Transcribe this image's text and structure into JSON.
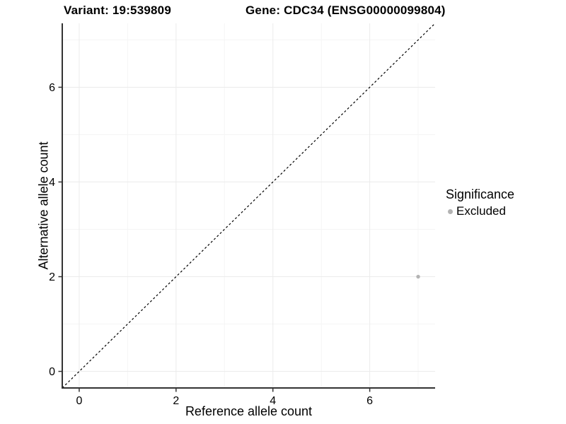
{
  "titles": {
    "variant": "Variant: 19:539809",
    "gene": "Gene: CDC34 (ENSG00000099804)"
  },
  "chart_data": {
    "type": "scatter",
    "title_left": "Variant: 19:539809",
    "title_right": "Gene: CDC34 (ENSG00000099804)",
    "xlabel": "Reference allele count",
    "ylabel": "Alternative allele count",
    "xlim": [
      -0.35,
      7.35
    ],
    "ylim": [
      -0.35,
      7.35
    ],
    "x_ticks": [
      0,
      2,
      4,
      6
    ],
    "y_ticks": [
      0,
      2,
      4,
      6
    ],
    "x_minor_ticks": [
      1,
      3,
      5,
      7
    ],
    "y_minor_ticks": [
      1,
      3,
      5,
      7
    ],
    "grid": "major+minor",
    "reference_line": {
      "type": "identity",
      "slope": 1,
      "intercept": 0,
      "style": "dashed",
      "color": "#000000"
    },
    "series": [
      {
        "name": "Excluded",
        "color": "#b3b3b3",
        "points": [
          {
            "x": 7,
            "y": 2
          }
        ]
      }
    ],
    "legend": {
      "title": "Significance",
      "position": "right",
      "entries": [
        {
          "label": "Excluded",
          "color": "#b3b3b3"
        }
      ]
    }
  },
  "colors": {
    "background": "#ffffff",
    "panel_background": "#ffffff",
    "grid_major": "#ebebeb",
    "grid_minor": "#f5f5f5",
    "axis_line": "#333333",
    "tick_mark": "#333333",
    "text": "#000000",
    "point": "#b3b3b3"
  }
}
